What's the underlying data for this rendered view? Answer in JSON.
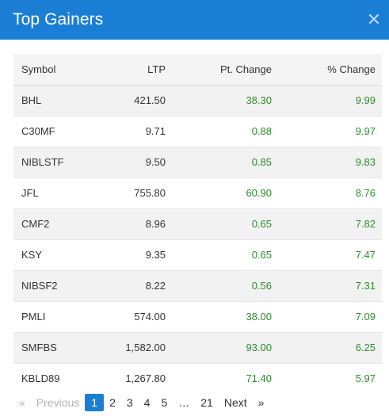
{
  "modal": {
    "title": "Top Gainers",
    "close_label": "✕"
  },
  "table": {
    "headers": [
      "Symbol",
      "LTP",
      "Pt. Change",
      "% Change"
    ],
    "rows": [
      [
        "BHL",
        "421.50",
        "38.30",
        "9.99"
      ],
      [
        "C30MF",
        "9.71",
        "0.88",
        "9.97"
      ],
      [
        "NIBLSTF",
        "9.50",
        "0.85",
        "9.83"
      ],
      [
        "JFL",
        "755.80",
        "60.90",
        "8.76"
      ],
      [
        "CMF2",
        "8.96",
        "0.65",
        "7.82"
      ],
      [
        "KSY",
        "9.35",
        "0.65",
        "7.47"
      ],
      [
        "NIBSF2",
        "8.22",
        "0.56",
        "7.31"
      ],
      [
        "PMLI",
        "574.00",
        "38.00",
        "7.09"
      ],
      [
        "SMFBS",
        "1,582.00",
        "93.00",
        "6.25"
      ],
      [
        "KBLD89",
        "1,267.80",
        "71.40",
        "5.97"
      ]
    ]
  },
  "pagination": {
    "first": "«",
    "previous": "Previous",
    "pages": [
      "1",
      "2",
      "3",
      "4",
      "5"
    ],
    "ellipsis": "…",
    "last_page": "21",
    "next": "Next",
    "last": "»",
    "current": "1"
  },
  "colors": {
    "header_bg": "#1a7fd4",
    "positive": "#2e8b2e",
    "active_page": "#1a7fd4"
  }
}
